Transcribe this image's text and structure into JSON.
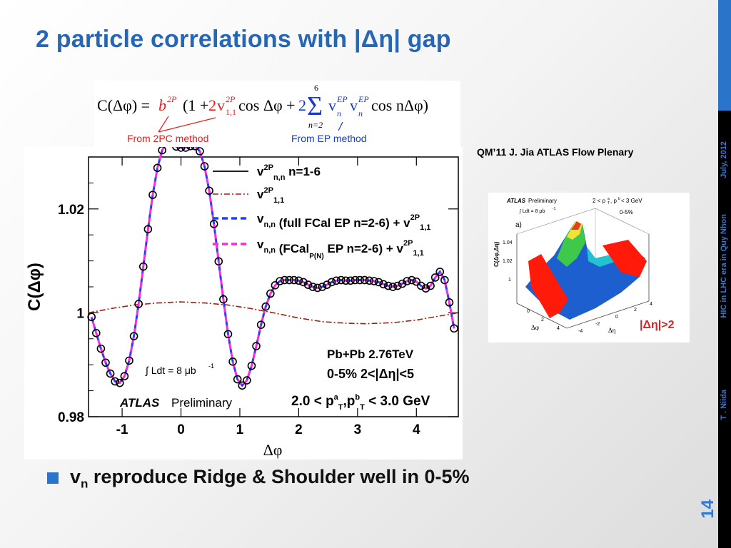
{
  "slide": {
    "title": "2 particle correlations with |Δη| gap",
    "reference": "QM’11 J. Jia  ATLAS Flow Plenary",
    "footer_date": "July, 2012",
    "footer_event": "HIC in LHC era in Quy Nhon",
    "footer_author": "T . Niida",
    "slide_number": "14",
    "bullet": {
      "main": "v",
      "sub": "n",
      "rest": " reproduce Ridge & Shoulder well in 0-5%"
    },
    "colors": {
      "title": "#2766b5",
      "accent": "#2a74c9",
      "red": "#e02020",
      "blue": "#2040ff",
      "magenta": "#ff2ad4"
    }
  },
  "formula": {
    "lhs": "C(Δφ) = ",
    "b": "b",
    "b_sup": "2P",
    "paren_open": "(1 + ",
    "two": "2",
    "v": "v",
    "v_sub": "1,1",
    "v_sup": "2P",
    "cos1": " cos Δφ + ",
    "two2": "2",
    "sum": "Σ",
    "sum_top": "6",
    "sum_bottom": "n=2",
    "ep_term": "v",
    "ep_sub": "n",
    "ep_sup": "EP",
    "ep_term2": "v",
    "ep_sub2": "n",
    "ep_sup2": "EP",
    "cos2": " cos nΔφ)",
    "note_2pc": "From 2PC method",
    "note_ep": "From EP method"
  },
  "main_plot": {
    "ylabel": "C(Δφ)",
    "xlabel": "Δφ",
    "atlas": "ATLAS",
    "preliminary": "Preliminary",
    "lumi": "∫ Ldt = 8 μb",
    "lumi_sup": "-1",
    "system": "Pb+Pb 2.76TeV",
    "cent": "0-5% 2<|Δη|<5",
    "pt_cut": "2.0 < p",
    "pt_tail": " < 3.0 GeV",
    "pt_sub": "T",
    "pt_sup_a": "a",
    "pt_sep": ",p",
    "pt_sup_b": "b",
    "legend": [
      {
        "main": "v",
        "sub": "n,n",
        "sup": "2P",
        "rest": " n=1-6"
      },
      {
        "main": "v",
        "sub": "1,1",
        "sup": "2P",
        "rest": ""
      },
      {
        "main": "v",
        "sub": "n,n",
        "sup": "",
        "rest": " (full FCal EP n=2-6) + v",
        "tail_sub": "1,1",
        "tail_sup": "2P"
      },
      {
        "main": "v",
        "sub": "n,n",
        "sup": "",
        "rest": " (FCal",
        "mid_sub": "P(N)",
        "rest2": " EP n=2-6) + v",
        "tail_sub": "1,1",
        "tail_sup": "2P"
      }
    ]
  },
  "inset_plot": {
    "atlas": "ATLAS",
    "preliminary": "Preliminary",
    "pt_label": "2 < p",
    "pt_sub": "T",
    "pt_sup": "a",
    "pt_mid": ", p",
    "pt_sup2": "b",
    "pt_tail": " < 3 GeV",
    "lumi": "∫ Ldt = 8 μb",
    "lumi_sup": "-1",
    "cent": "0-5%",
    "panel": "a)",
    "zlabel": "C(Δφ,Δη)",
    "z_ticks": [
      "1.04",
      "1.02",
      "1"
    ],
    "phi_ticks": [
      "0",
      "2",
      "4"
    ],
    "eta_ticks": [
      "-4",
      "-2",
      "0",
      "2",
      "4"
    ],
    "phi_label": "Δφ",
    "eta_label": "Δη",
    "gap_label": "|Δη|>2"
  },
  "chart_data": {
    "type": "scatter",
    "title": "",
    "xlabel": "Δφ",
    "ylabel": "C(Δφ)",
    "xlim": [
      -1.571,
      4.712
    ],
    "ylim": [
      0.98,
      1.03
    ],
    "x_ticks": [
      "-1",
      "0",
      "1",
      "2",
      "3",
      "4"
    ],
    "y_ticks": [
      "0.98",
      "1",
      "1.02"
    ],
    "y_tick_values": [
      0.98,
      1.0,
      1.02
    ],
    "x_tick_values": [
      -1,
      0,
      1,
      2,
      3,
      4
    ],
    "data_points": {
      "x": [
        -1.52,
        -1.44,
        -1.36,
        -1.28,
        -1.2,
        -1.12,
        -1.04,
        -0.96,
        -0.88,
        -0.8,
        -0.72,
        -0.64,
        -0.56,
        -0.48,
        -0.4,
        -0.32,
        -0.24,
        -0.16,
        -0.08,
        0.0,
        0.08,
        0.16,
        0.24,
        0.32,
        0.4,
        0.48,
        0.56,
        0.64,
        0.72,
        0.8,
        0.88,
        0.96,
        1.04,
        1.12,
        1.2,
        1.28,
        1.36,
        1.44,
        1.52,
        1.6,
        1.68,
        1.76,
        1.84,
        1.92,
        2.0,
        2.08,
        2.16,
        2.24,
        2.32,
        2.4,
        2.48,
        2.56,
        2.64,
        2.72,
        2.8,
        2.88,
        2.96,
        3.04,
        3.12,
        3.2,
        3.28,
        3.36,
        3.44,
        3.52,
        3.6,
        3.68,
        3.76,
        3.84,
        3.92,
        4.0,
        4.08,
        4.16,
        4.24,
        4.32,
        4.4,
        4.48,
        4.56,
        4.64
      ],
      "y": [
        0.9992,
        0.9961,
        0.9931,
        0.9904,
        0.9883,
        0.9868,
        0.9865,
        0.9878,
        0.9908,
        0.9955,
        1.0017,
        1.0089,
        1.0161,
        1.0227,
        1.0279,
        1.0313,
        1.0328,
        1.0327,
        1.032,
        1.0318,
        1.0318,
        1.0321,
        1.0321,
        1.0311,
        1.0282,
        1.0235,
        1.0171,
        1.0099,
        1.0026,
        0.9959,
        0.9906,
        0.9872,
        0.986,
        0.987,
        0.9898,
        0.9936,
        0.9977,
        1.0012,
        1.0037,
        1.0053,
        1.0061,
        1.0063,
        1.0063,
        1.0063,
        1.0062,
        1.0059,
        1.0054,
        1.005,
        1.0048,
        1.005,
        1.0054,
        1.0059,
        1.0062,
        1.0063,
        1.0062,
        1.0062,
        1.0063,
        1.0063,
        1.0063,
        1.0062,
        1.0061,
        1.0059,
        1.0055,
        1.0052,
        1.005,
        1.0052,
        1.0056,
        1.0061,
        1.0063,
        1.006,
        1.0052,
        1.0047,
        1.0052,
        1.0068,
        1.0079,
        1.0063,
        1.002,
        0.997
      ]
    },
    "series": [
      {
        "name": "v n,n 2P n=1-6",
        "color": "#000000",
        "style": "solid"
      },
      {
        "name": "v 1,1 2P",
        "color": "#a02010",
        "style": "dash-dot",
        "values_note": "v1 component"
      },
      {
        "name": "v n,n (full FCal EP n=2-6) + v 1,1 2P",
        "color": "#2040ff",
        "style": "dashed"
      },
      {
        "name": "v n,n (FCal P(N) EP n=2-6) + v 1,1 2P",
        "color": "#ff2ad4",
        "style": "dashed"
      }
    ],
    "v11_curve": {
      "x": [
        -1.571,
        -1.2,
        -0.8,
        -0.4,
        0.0,
        0.4,
        0.8,
        1.2,
        1.571,
        2.0,
        2.4,
        2.8,
        3.14,
        3.6,
        4.0,
        4.4,
        4.712
      ],
      "y": [
        1.0,
        1.0008,
        1.0015,
        1.0019,
        1.0021,
        1.0019,
        1.0015,
        1.0008,
        1.0,
        0.999,
        0.9983,
        0.998,
        0.9979,
        0.9981,
        0.9986,
        0.9994,
        1.0
      ]
    },
    "legend_position": "top-right",
    "grid": false
  }
}
